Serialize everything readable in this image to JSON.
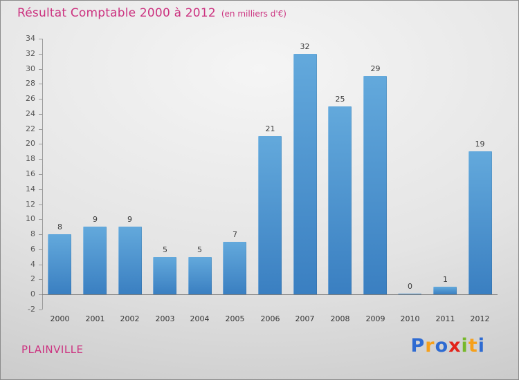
{
  "title": "Résultat Comptable 2000 à 2012",
  "subtitle": "(en milliers d'€)",
  "accent_color": "#cc3380",
  "footer": {
    "location": "PLAINVILLE"
  },
  "logo": {
    "name": "Proxiti",
    "letters": [
      {
        "char": "P",
        "color": "#2e6bd2"
      },
      {
        "char": "r",
        "color": "#f6a01a"
      },
      {
        "char": "o",
        "color": "#2e6bd2"
      },
      {
        "char": "x",
        "color": "#e2231a"
      },
      {
        "char": "i",
        "color": "#76b82a"
      },
      {
        "char": "t",
        "color": "#f6a01a"
      },
      {
        "char": "i",
        "color": "#2e6bd2"
      }
    ]
  },
  "chart_data": {
    "type": "bar",
    "title": "Résultat Comptable 2000 à 2012",
    "unit_label": "(en milliers d'€)",
    "categories": [
      "2000",
      "2001",
      "2002",
      "2003",
      "2004",
      "2005",
      "2006",
      "2007",
      "2008",
      "2009",
      "2010",
      "2011",
      "2012"
    ],
    "values": [
      8,
      9,
      9,
      5,
      5,
      7,
      21,
      32,
      25,
      29,
      0,
      1,
      19
    ],
    "xlabel": "",
    "ylabel": "",
    "ylim": [
      -2,
      34
    ],
    "ytick_step": 2,
    "grid": false,
    "legend": "none",
    "bar_color_top": "#63a9dc",
    "bar_color_bottom": "#3a7fc1",
    "axis_color": "#9a9a9a",
    "label_color": "#333333"
  }
}
